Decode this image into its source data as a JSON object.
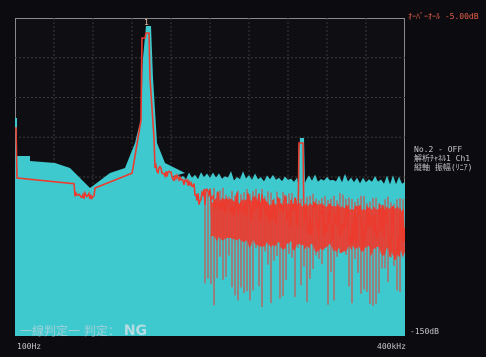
{
  "header": {
    "ref_level": "ｵｰﾊﾞｰｵｰﾙ -5.00dB"
  },
  "side_info": {
    "line1": "No.2 - OFF",
    "line2": "解析ﾁｬﾈﾙ1 Ch1",
    "line3": "縦軸 振幅(ﾘﾆｱ)"
  },
  "axis": {
    "bottom_level": "-150dB",
    "x_start": "100Hz",
    "x_end": "400kHz"
  },
  "marker": {
    "label": "1"
  },
  "judgement": {
    "prefix": "一線判定一  判定：",
    "result": "NG"
  },
  "colors": {
    "background": "#0b0b10",
    "grid": "#3a3a3a",
    "limit_fill": "#3ec9cf",
    "spectrum": "#ec3b2e",
    "frame": "#8a8a8a"
  },
  "chart_data": {
    "type": "area",
    "title": "",
    "xlabel": "",
    "ylabel": "",
    "x_range": [
      "100Hz",
      "400kHz"
    ],
    "y_bottom": "-150dB",
    "grid": true,
    "series": [
      {
        "name": "",
        "description_color": "#3ec9cf"
      },
      {
        "name": "",
        "description_color": "#ec3b2e"
      }
    ]
  }
}
